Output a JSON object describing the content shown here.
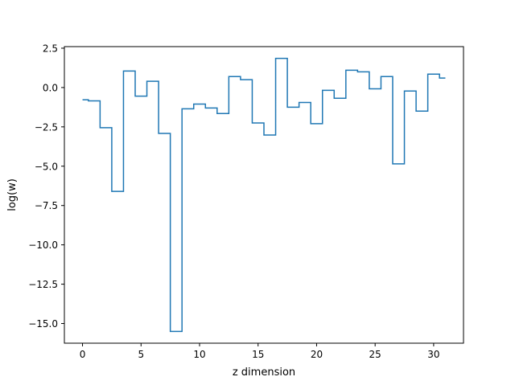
{
  "chart_data": {
    "type": "line",
    "drawstyle": "steps-mid",
    "xlabel": "z dimension",
    "ylabel": "log(w)",
    "xlim": [
      -1.55,
      32.55
    ],
    "ylim": [
      -16.25,
      2.6
    ],
    "xticks": [
      0,
      5,
      10,
      15,
      20,
      25,
      30
    ],
    "xtick_labels": [
      "0",
      "5",
      "10",
      "15",
      "20",
      "25",
      "30"
    ],
    "yticks": [
      2.5,
      0.0,
      -2.5,
      -5.0,
      -7.5,
      -10.0,
      -12.5,
      -15.0
    ],
    "ytick_labels": [
      "2.5",
      "0.0",
      "−2.5",
      "−5.0",
      "−7.5",
      "−10.0",
      "−12.5",
      "−15.0"
    ],
    "grid": false,
    "series": [
      {
        "color": "#1f77b4",
        "x": [
          0,
          1,
          2,
          3,
          4,
          5,
          6,
          7,
          8,
          9,
          10,
          11,
          12,
          13,
          14,
          15,
          16,
          17,
          18,
          19,
          20,
          21,
          22,
          23,
          24,
          25,
          26,
          27,
          28,
          29,
          30,
          31
        ],
        "y": [
          -0.78,
          -0.85,
          -2.55,
          -6.6,
          1.05,
          -0.55,
          0.4,
          -2.92,
          -15.5,
          -1.35,
          -1.05,
          -1.3,
          -1.65,
          0.7,
          0.5,
          -2.25,
          -3.02,
          1.85,
          -1.25,
          -0.95,
          -2.3,
          -0.18,
          -0.68,
          1.1,
          1.0,
          -0.08,
          0.7,
          -4.85,
          -0.22,
          -1.5,
          0.85,
          0.6
        ]
      }
    ]
  }
}
